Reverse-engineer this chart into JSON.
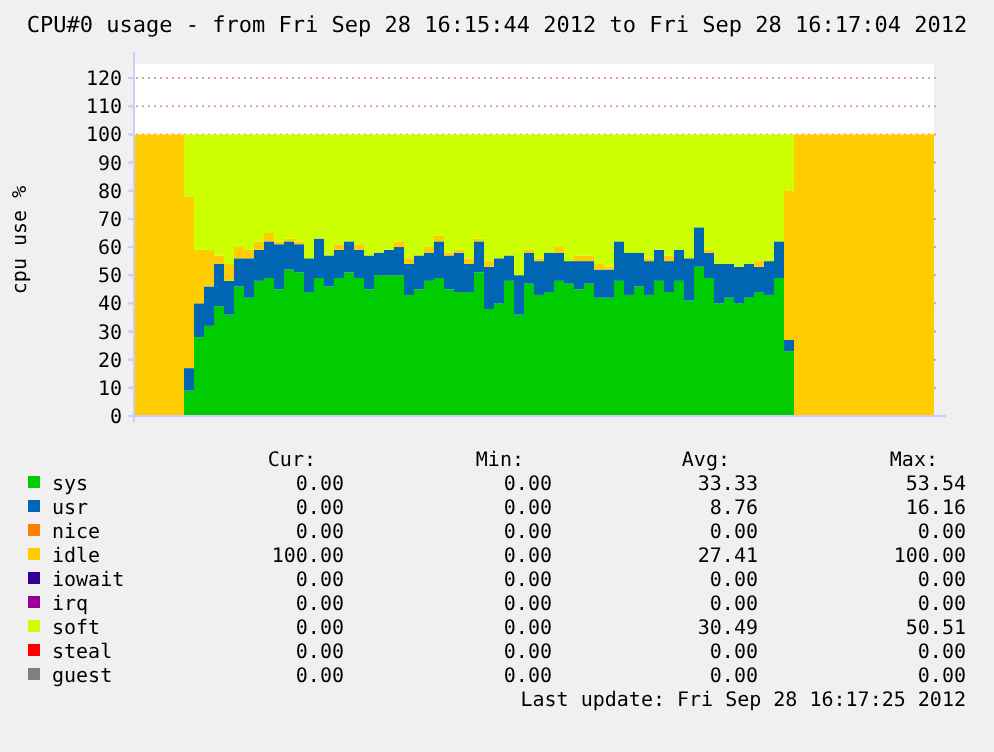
{
  "chart_data": {
    "type": "bar",
    "stacked": true,
    "title": "CPU#0 usage - from Fri Sep 28 16:15:44 2012 to Fri Sep 28 16:17:04 2012",
    "ylabel": "cpu use %",
    "categories": [
      null,
      null,
      null,
      null,
      null,
      null,
      null,
      null,
      null,
      null,
      null,
      null,
      null,
      null,
      null,
      null,
      null,
      null,
      null,
      null,
      null,
      null,
      null,
      null,
      null,
      null,
      null,
      null,
      null,
      null,
      null,
      null,
      null,
      null,
      null,
      null,
      null,
      null,
      null,
      null,
      null,
      null,
      null,
      null,
      null,
      null,
      null,
      null,
      null,
      null,
      null,
      null,
      null,
      null,
      null,
      null,
      null,
      null,
      null,
      null,
      null,
      null,
      null,
      null,
      null,
      null,
      null,
      null,
      null,
      null,
      null,
      null,
      null,
      null,
      null,
      null,
      null,
      null,
      null,
      null
    ],
    "ylim": [
      0,
      125
    ],
    "yticks": [
      0,
      10,
      20,
      30,
      40,
      50,
      60,
      70,
      80,
      90,
      100,
      110,
      120
    ],
    "grid": "y",
    "legend": "bottom",
    "series": [
      {
        "name": "sys",
        "color": "#00cc00",
        "values": [
          0,
          0,
          0,
          0,
          0,
          9,
          28,
          32,
          39,
          36,
          46,
          42,
          48,
          49,
          45,
          52,
          51,
          44,
          49,
          46,
          49,
          51,
          49,
          45,
          50,
          50,
          50,
          43,
          45,
          48,
          49,
          45,
          44,
          44,
          51,
          38,
          40,
          48,
          36,
          47,
          43,
          44,
          48,
          47,
          45,
          47,
          42,
          42,
          48,
          43,
          46,
          43,
          48,
          44,
          48,
          41,
          53,
          49,
          40,
          42,
          40,
          42,
          44,
          43,
          49,
          23,
          0,
          0,
          0,
          0,
          0,
          0,
          0,
          0,
          0,
          0,
          0,
          0,
          0,
          0
        ]
      },
      {
        "name": "usr",
        "color": "#0066b3",
        "values": [
          0,
          0,
          0,
          0,
          0,
          8,
          12,
          14,
          15,
          12,
          10,
          14,
          11,
          13,
          16,
          10,
          10,
          12,
          14,
          11,
          10,
          11,
          10,
          12,
          8,
          9,
          10,
          11,
          12,
          10,
          13,
          12,
          14,
          10,
          11,
          15,
          16,
          9,
          14,
          11,
          12,
          14,
          10,
          8,
          10,
          8,
          10,
          10,
          14,
          15,
          12,
          12,
          11,
          11,
          11,
          15,
          14,
          9,
          14,
          12,
          13,
          12,
          9,
          12,
          13,
          4,
          0,
          0,
          0,
          0,
          0,
          0,
          0,
          0,
          0,
          0,
          0,
          0,
          0,
          0
        ]
      },
      {
        "name": "nice",
        "color": "#ff8000",
        "values": [
          0,
          0,
          0,
          0,
          0,
          0,
          0,
          0,
          0,
          0,
          0,
          0,
          0,
          0,
          0,
          0,
          0,
          0,
          0,
          0,
          0,
          0,
          0,
          0,
          0,
          0,
          0,
          0,
          0,
          0,
          0,
          0,
          0,
          0,
          0,
          0,
          0,
          0,
          0,
          0,
          0,
          0,
          0,
          0,
          0,
          0,
          0,
          0,
          0,
          0,
          0,
          0,
          0,
          0,
          0,
          0,
          0,
          0,
          0,
          0,
          0,
          0,
          0,
          0,
          0,
          0,
          0,
          0,
          0,
          0,
          0,
          0,
          0,
          0,
          0,
          0,
          0,
          0,
          0,
          0
        ]
      },
      {
        "name": "idle",
        "color": "#ffcc00",
        "values": [
          100,
          100,
          100,
          100,
          100,
          61,
          19,
          13,
          3,
          6,
          4,
          3,
          3,
          3,
          1,
          1,
          1,
          0,
          0,
          0,
          2,
          0,
          2,
          0,
          0,
          0,
          2,
          2,
          0,
          2,
          2,
          1,
          1,
          2,
          1,
          2,
          0,
          0,
          0,
          1,
          1,
          0,
          2,
          0,
          2,
          2,
          2,
          1,
          0,
          0,
          0,
          1,
          0,
          2,
          0,
          0,
          0,
          1,
          0,
          0,
          0,
          0,
          2,
          0,
          0,
          53,
          100,
          100,
          100,
          100,
          100,
          100,
          100,
          100,
          100,
          100,
          100,
          100,
          100,
          100
        ]
      },
      {
        "name": "iowait",
        "color": "#330099",
        "values": [
          0,
          0,
          0,
          0,
          0,
          0,
          0,
          0,
          0,
          0,
          0,
          0,
          0,
          0,
          0,
          0,
          0,
          0,
          0,
          0,
          0,
          0,
          0,
          0,
          0,
          0,
          0,
          0,
          0,
          0,
          0,
          0,
          0,
          0,
          0,
          0,
          0,
          0,
          0,
          0,
          0,
          0,
          0,
          0,
          0,
          0,
          0,
          0,
          0,
          0,
          0,
          0,
          0,
          0,
          0,
          0,
          0,
          0,
          0,
          0,
          0,
          0,
          0,
          0,
          0,
          0,
          0,
          0,
          0,
          0,
          0,
          0,
          0,
          0,
          0,
          0,
          0,
          0,
          0,
          0
        ]
      },
      {
        "name": "irq",
        "color": "#990099",
        "values": [
          0,
          0,
          0,
          0,
          0,
          0,
          0,
          0,
          0,
          0,
          0,
          0,
          0,
          0,
          0,
          0,
          0,
          0,
          0,
          0,
          0,
          0,
          0,
          0,
          0,
          0,
          0,
          0,
          0,
          0,
          0,
          0,
          0,
          0,
          0,
          0,
          0,
          0,
          0,
          0,
          0,
          0,
          0,
          0,
          0,
          0,
          0,
          0,
          0,
          0,
          0,
          0,
          0,
          0,
          0,
          0,
          0,
          0,
          0,
          0,
          0,
          0,
          0,
          0,
          0,
          0,
          0,
          0,
          0,
          0,
          0,
          0,
          0,
          0,
          0,
          0,
          0,
          0,
          0,
          0
        ]
      },
      {
        "name": "soft",
        "color": "#ccff00",
        "values": [
          0,
          0,
          0,
          0,
          0,
          22,
          41,
          41,
          43,
          46,
          40,
          41,
          38,
          35,
          38,
          37,
          38,
          44,
          37,
          43,
          39,
          38,
          39,
          43,
          42,
          41,
          38,
          44,
          43,
          40,
          36,
          42,
          41,
          44,
          37,
          45,
          44,
          43,
          50,
          41,
          44,
          42,
          40,
          45,
          43,
          43,
          46,
          47,
          38,
          42,
          42,
          44,
          41,
          43,
          41,
          44,
          33,
          41,
          46,
          46,
          47,
          46,
          45,
          45,
          38,
          20,
          0,
          0,
          0,
          0,
          0,
          0,
          0,
          0,
          0,
          0,
          0,
          0,
          0,
          0
        ]
      },
      {
        "name": "steal",
        "color": "#ff0000",
        "values": [
          0,
          0,
          0,
          0,
          0,
          0,
          0,
          0,
          0,
          0,
          0,
          0,
          0,
          0,
          0,
          0,
          0,
          0,
          0,
          0,
          0,
          0,
          0,
          0,
          0,
          0,
          0,
          0,
          0,
          0,
          0,
          0,
          0,
          0,
          0,
          0,
          0,
          0,
          0,
          0,
          0,
          0,
          0,
          0,
          0,
          0,
          0,
          0,
          0,
          0,
          0,
          0,
          0,
          0,
          0,
          0,
          0,
          0,
          0,
          0,
          0,
          0,
          0,
          0,
          0,
          0,
          0,
          0,
          0,
          0,
          0,
          0,
          0,
          0,
          0,
          0,
          0,
          0,
          0,
          0
        ]
      },
      {
        "name": "guest",
        "color": "#808080",
        "values": [
          0,
          0,
          0,
          0,
          0,
          0,
          0,
          0,
          0,
          0,
          0,
          0,
          0,
          0,
          0,
          0,
          0,
          0,
          0,
          0,
          0,
          0,
          0,
          0,
          0,
          0,
          0,
          0,
          0,
          0,
          0,
          0,
          0,
          0,
          0,
          0,
          0,
          0,
          0,
          0,
          0,
          0,
          0,
          0,
          0,
          0,
          0,
          0,
          0,
          0,
          0,
          0,
          0,
          0,
          0,
          0,
          0,
          0,
          0,
          0,
          0,
          0,
          0,
          0,
          0,
          0,
          0,
          0,
          0,
          0,
          0,
          0,
          0,
          0,
          0,
          0,
          0,
          0,
          0,
          0
        ]
      }
    ],
    "annotations": [
      "Cur:",
      "Min:",
      "Avg:",
      "Max:",
      "0.00",
      "0.00",
      "33.33",
      "53.54",
      "0.00",
      "0.00",
      "8.76",
      "16.16",
      "0.00",
      "0.00",
      "0.00",
      "0.00",
      "100.00",
      "0.00",
      "27.41",
      "100.00",
      "0.00",
      "0.00",
      "0.00",
      "0.00",
      "0.00",
      "0.00",
      "0.00",
      "0.00",
      "0.00",
      "0.00",
      "30.49",
      "50.51",
      "0.00",
      "0.00",
      "0.00",
      "0.00",
      "0.00",
      "0.00",
      "0.00",
      "0.00",
      "Last update: Fri Sep 28 16:17:25 2012"
    ]
  }
}
